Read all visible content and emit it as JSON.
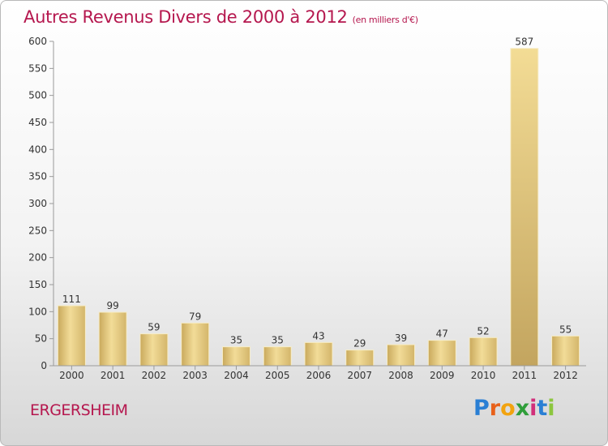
{
  "title": "Autres Revenus Divers de 2000 à 2012",
  "subtitle": "(en milliers d'€)",
  "place": "ERGERSHEIM",
  "logo": {
    "letters": [
      "P",
      "r",
      "o",
      "x",
      "i",
      "t",
      "i"
    ],
    "colors": [
      "#2a7fd4",
      "#e8611a",
      "#f2a30f",
      "#2f9e3a",
      "#d12f7a",
      "#2a7fd4",
      "#8cc63f"
    ]
  },
  "chart_data": {
    "type": "bar",
    "categories": [
      "2000",
      "2001",
      "2002",
      "2003",
      "2004",
      "2005",
      "2006",
      "2007",
      "2008",
      "2009",
      "2010",
      "2011",
      "2012"
    ],
    "values": [
      111,
      99,
      59,
      79,
      35,
      35,
      43,
      29,
      39,
      47,
      52,
      587,
      55
    ],
    "ylim": [
      0,
      600
    ],
    "yticks": [
      0,
      50,
      100,
      150,
      200,
      250,
      300,
      350,
      400,
      450,
      500,
      550,
      600
    ],
    "grid": false,
    "bar_color": "#e8cf85"
  }
}
